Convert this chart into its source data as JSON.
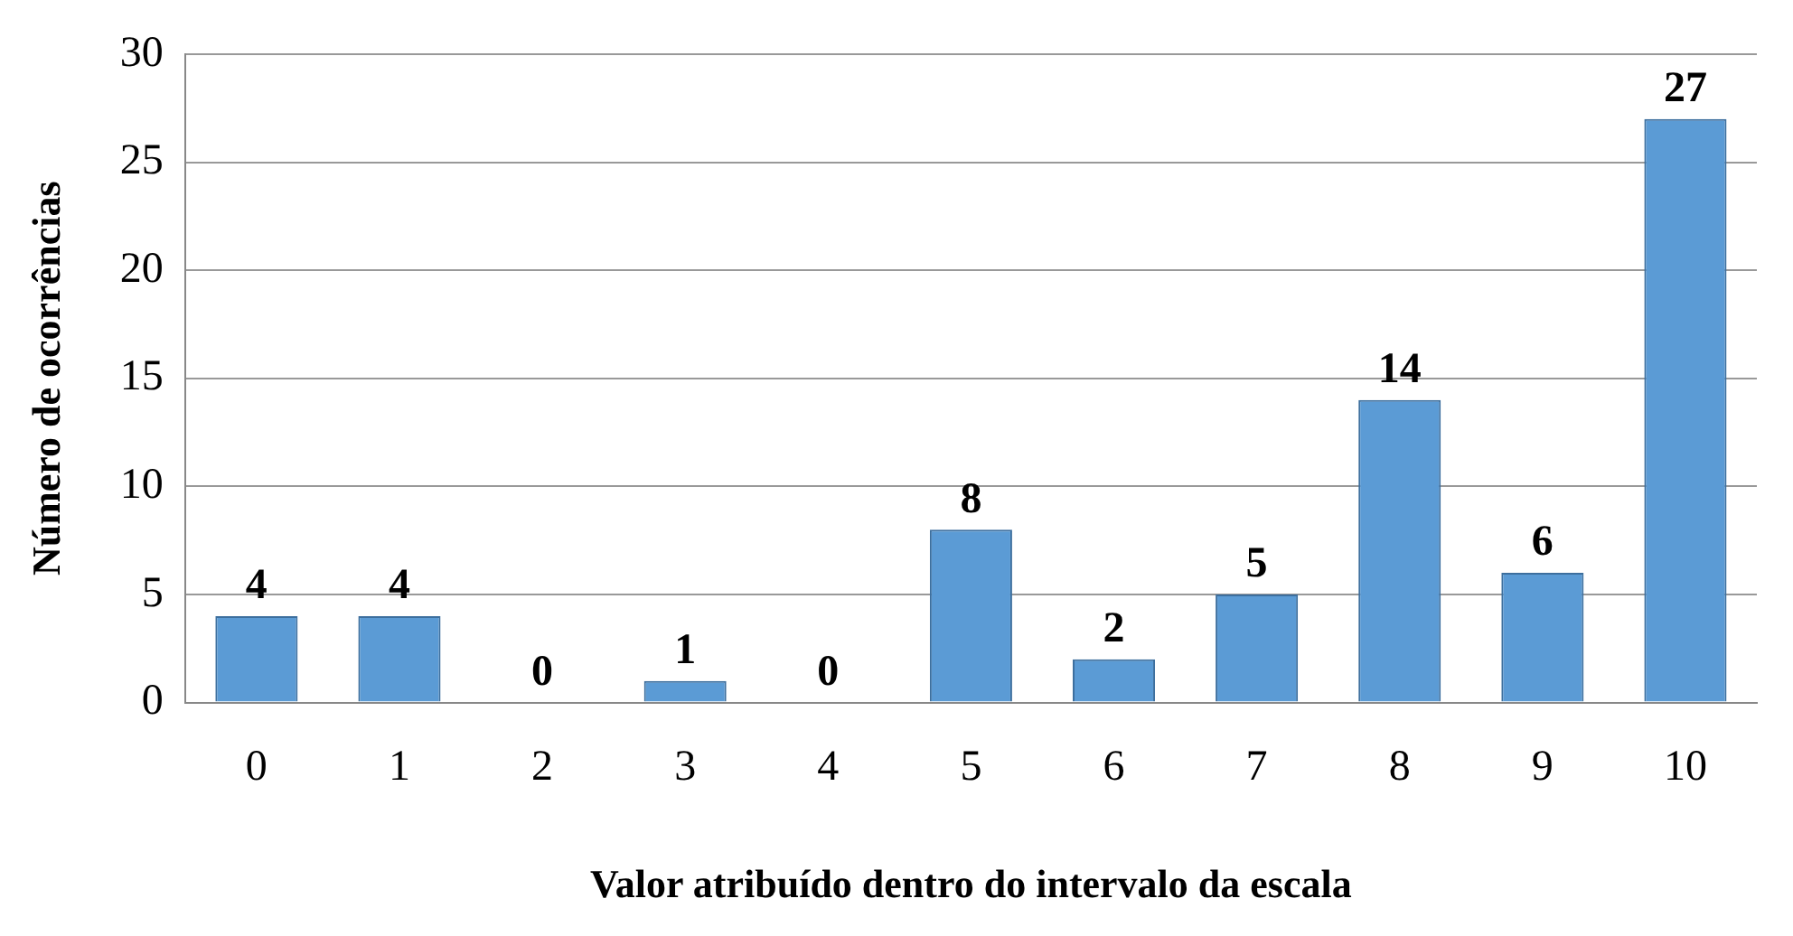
{
  "chart_data": {
    "type": "bar",
    "xlabel": "Valor atribuído dentro do intervalo da escala",
    "ylabel": "Número de ocorrências",
    "categories": [
      "0",
      "1",
      "2",
      "3",
      "4",
      "5",
      "6",
      "7",
      "8",
      "9",
      "10"
    ],
    "values": [
      4,
      4,
      0,
      1,
      0,
      8,
      2,
      5,
      14,
      6,
      27
    ],
    "color": "#5b9bd5",
    "ylim": [
      0,
      30
    ],
    "yticks": [
      0,
      5,
      10,
      15,
      20,
      25,
      30
    ],
    "grid": true,
    "data_labels": true
  }
}
